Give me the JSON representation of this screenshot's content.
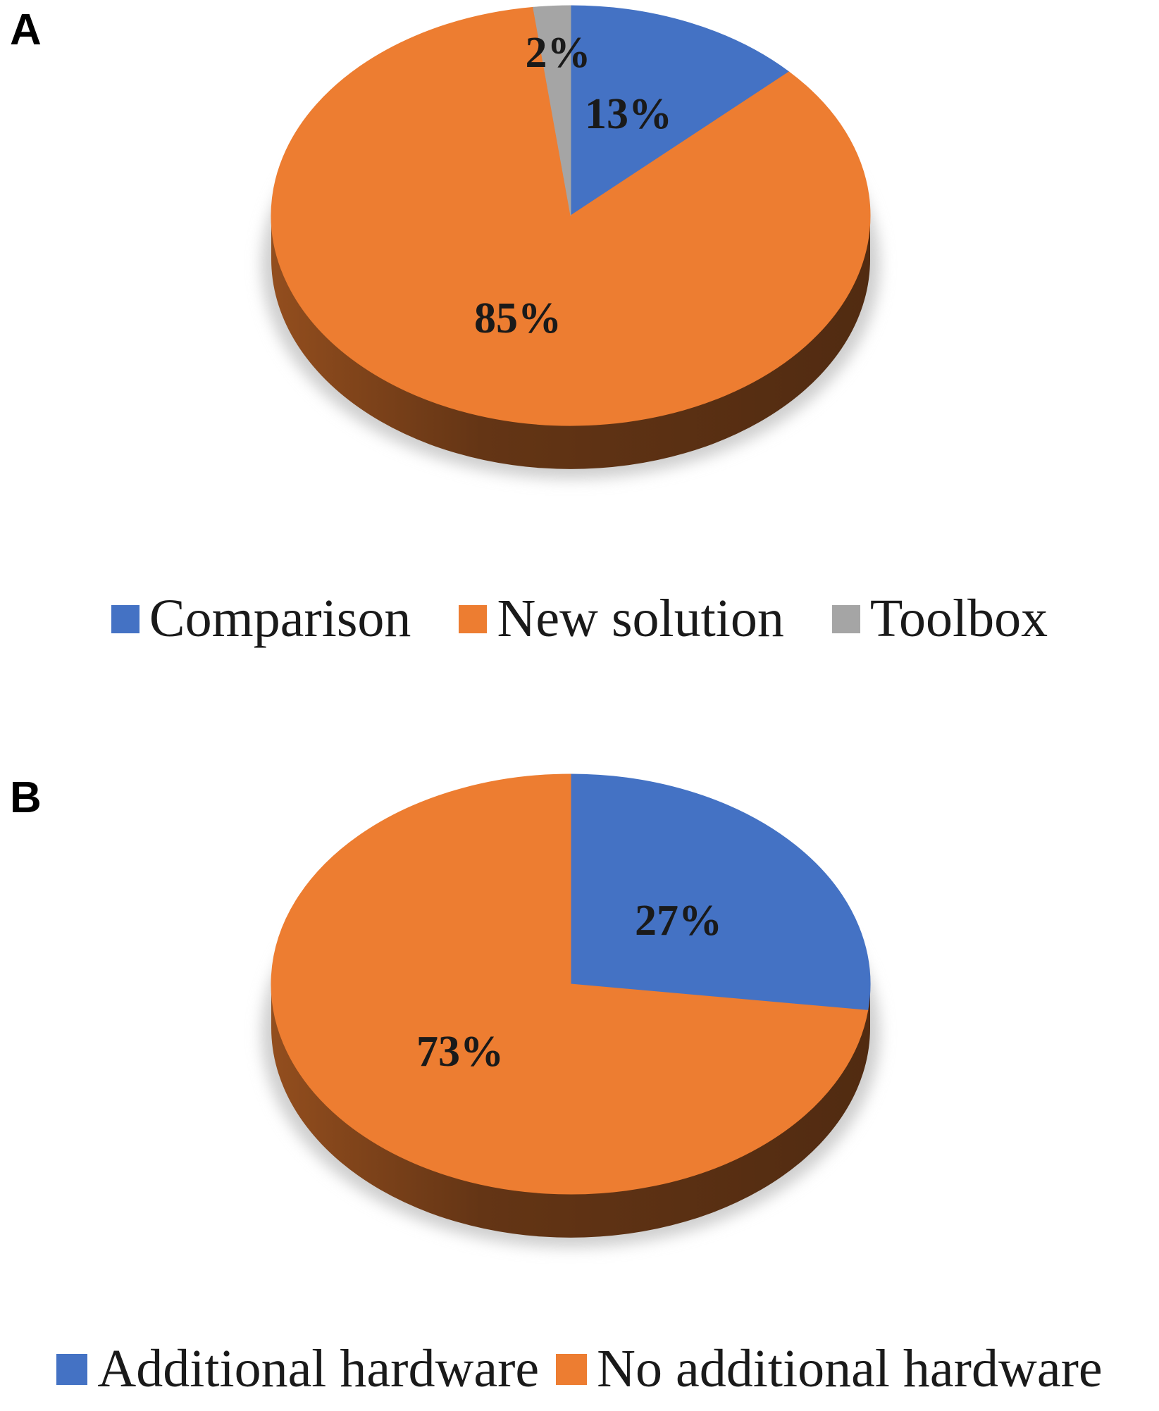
{
  "chart_data": [
    {
      "type": "pie",
      "panel_label": "A",
      "categories": [
        "Comparison",
        "New solution",
        "Toolbox"
      ],
      "values": [
        13,
        85,
        2
      ],
      "data_labels": [
        "13%",
        "85%",
        "2%"
      ],
      "colors": [
        "#4472C4",
        "#ED7D31",
        "#A5A5A5"
      ],
      "legend": [
        "Comparison",
        "New solution",
        "Toolbox"
      ],
      "legend_position": "bottom",
      "style": "3d"
    },
    {
      "type": "pie",
      "panel_label": "B",
      "categories": [
        "Additional hardware",
        "No additional hardware"
      ],
      "values": [
        27,
        73
      ],
      "data_labels": [
        "27%",
        "73%"
      ],
      "colors": [
        "#4472C4",
        "#ED7D31"
      ],
      "legend": [
        "Additional hardware",
        "No additional hardware"
      ],
      "legend_position": "bottom",
      "style": "3d"
    }
  ]
}
